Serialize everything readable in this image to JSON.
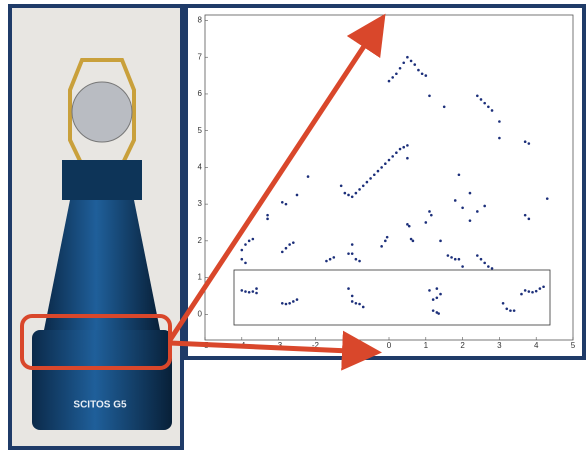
{
  "photo": {
    "label": "SCITOS G5"
  },
  "chart_data": {
    "type": "scatter",
    "color": "#1c2f7a",
    "xlim": [
      -5,
      5
    ],
    "ylim": [
      -0.7,
      8.15
    ],
    "xticks": [
      -5,
      -4,
      -3,
      -2,
      -1,
      0,
      1,
      2,
      3,
      4,
      5
    ],
    "yticks": [
      0,
      1,
      2,
      3,
      4,
      5,
      6,
      7,
      8
    ],
    "x": [
      0.0,
      0.1,
      0.2,
      0.3,
      0.4,
      0.5,
      0.6,
      0.7,
      0.8,
      0.9,
      1.0,
      1.1,
      1.5,
      2.4,
      2.5,
      2.6,
      2.7,
      2.8,
      3.0,
      3.0,
      3.7,
      3.8,
      4.3,
      3.7,
      3.8,
      -1.0,
      -0.9,
      -0.8,
      -0.7,
      -0.6,
      -0.5,
      -0.4,
      -0.3,
      -0.2,
      -0.1,
      0.0,
      0.1,
      0.2,
      0.3,
      0.4,
      0.5,
      -1.3,
      -1.2,
      -1.1,
      -2.2,
      -2.5,
      -2.9,
      -2.8,
      -3.3,
      -3.3,
      -2.9,
      -2.8,
      -2.7,
      -2.6,
      -4.0,
      -3.9,
      -3.8,
      -3.7,
      -4.0,
      -3.9,
      -1.7,
      -1.6,
      -1.5,
      -1.0,
      -1.1,
      -1.0,
      -0.9,
      -0.8,
      -0.2,
      -0.1,
      -0.05,
      0.5,
      0.5,
      0.55,
      0.6,
      0.65,
      1.0,
      1.1,
      1.15,
      1.4,
      1.6,
      1.7,
      1.8,
      1.9,
      1.9,
      1.8,
      2.0,
      2.2,
      2.2,
      2.4,
      2.6,
      2.4,
      2.5,
      2.6,
      2.7,
      2.8,
      2.0,
      -4.0,
      -3.9,
      -3.8,
      -3.7,
      -3.6,
      -3.6,
      -2.9,
      -2.8,
      -2.7,
      -2.6,
      -2.5,
      -1.1,
      -1.0,
      -0.9,
      -0.8,
      -0.7,
      -1.0,
      1.1,
      1.2,
      1.3,
      1.2,
      1.3,
      1.35,
      1.3,
      1.4,
      3.1,
      3.2,
      3.3,
      3.4,
      3.6,
      3.7,
      3.8,
      3.9,
      4.0,
      4.1,
      4.2
    ],
    "values": [
      6.35,
      6.45,
      6.55,
      6.7,
      6.85,
      7.0,
      6.9,
      6.8,
      6.65,
      6.55,
      6.5,
      5.95,
      5.65,
      5.95,
      5.85,
      5.75,
      5.65,
      5.55,
      5.25,
      4.8,
      4.7,
      4.65,
      3.15,
      2.7,
      2.6,
      3.2,
      3.3,
      3.4,
      3.5,
      3.6,
      3.7,
      3.8,
      3.9,
      4.0,
      4.1,
      4.2,
      4.3,
      4.4,
      4.5,
      4.55,
      4.6,
      3.5,
      3.3,
      3.25,
      3.75,
      3.25,
      3.05,
      3.0,
      2.7,
      2.6,
      1.7,
      1.8,
      1.9,
      1.95,
      1.75,
      1.9,
      2.0,
      2.05,
      1.5,
      1.4,
      1.45,
      1.5,
      1.55,
      1.9,
      1.65,
      1.65,
      1.5,
      1.45,
      1.85,
      2.0,
      2.1,
      4.25,
      2.45,
      2.4,
      2.05,
      2.0,
      2.5,
      2.8,
      2.7,
      2.0,
      1.6,
      1.55,
      1.5,
      1.5,
      3.8,
      3.1,
      2.9,
      2.55,
      3.3,
      2.8,
      2.95,
      1.6,
      1.5,
      1.4,
      1.3,
      1.25,
      1.3,
      0.65,
      0.62,
      0.6,
      0.62,
      0.7,
      0.58,
      0.3,
      0.28,
      0.3,
      0.35,
      0.4,
      0.7,
      0.35,
      0.3,
      0.28,
      0.2,
      0.5,
      0.65,
      0.4,
      0.45,
      0.1,
      0.05,
      0.02,
      0.7,
      0.55,
      0.3,
      0.15,
      0.1,
      0.1,
      0.55,
      0.65,
      0.62,
      0.6,
      0.63,
      0.7,
      0.75
    ]
  }
}
